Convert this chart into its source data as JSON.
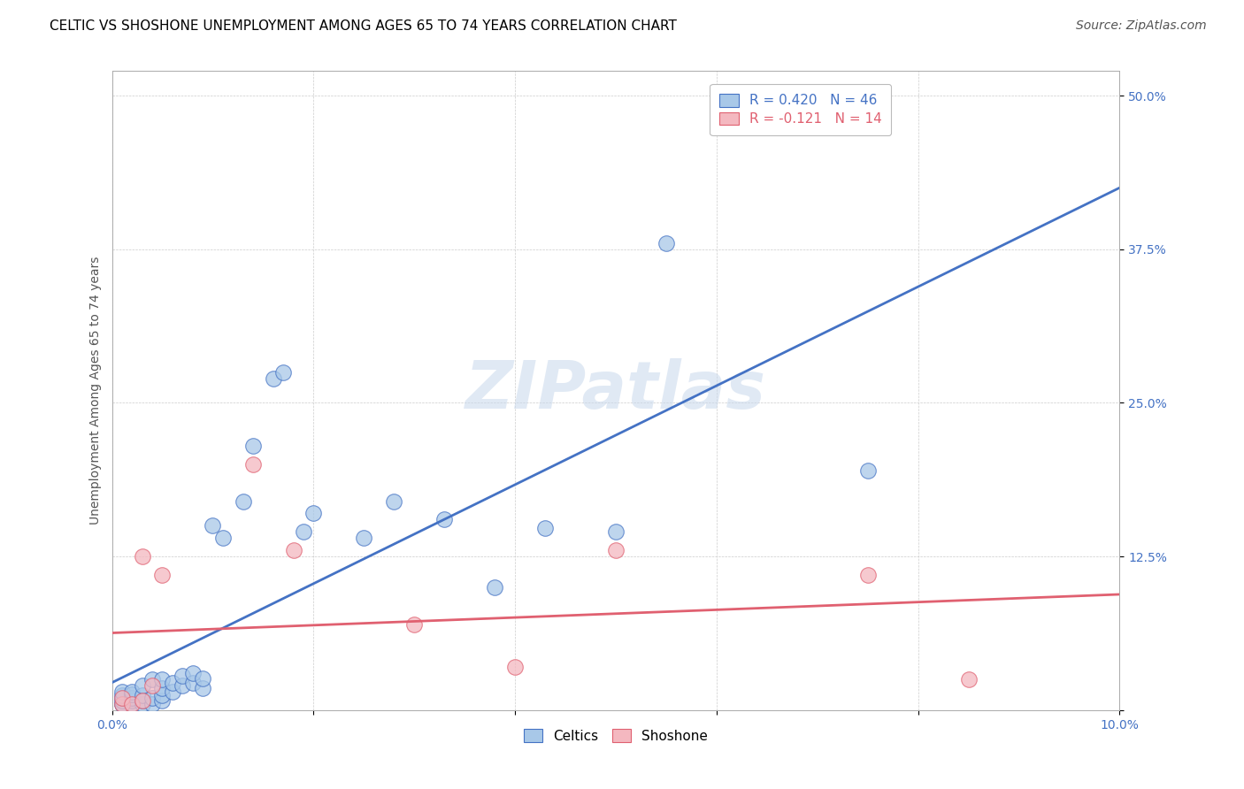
{
  "title": "CELTIC VS SHOSHONE UNEMPLOYMENT AMONG AGES 65 TO 74 YEARS CORRELATION CHART",
  "source_text": "Source: ZipAtlas.com",
  "ylabel": "Unemployment Among Ages 65 to 74 years",
  "xlim": [
    0.0,
    0.1
  ],
  "ylim": [
    0.0,
    0.52
  ],
  "xticks": [
    0.0,
    0.02,
    0.04,
    0.06,
    0.08,
    0.1
  ],
  "xticklabels": [
    "0.0%",
    "",
    "",
    "",
    "",
    "10.0%"
  ],
  "yticks": [
    0.0,
    0.125,
    0.25,
    0.375,
    0.5
  ],
  "yticklabels": [
    "",
    "12.5%",
    "25.0%",
    "37.5%",
    "50.0%"
  ],
  "celtics_color": "#a8c8e8",
  "shoshone_color": "#f4b8c0",
  "celtics_line_color": "#4472c4",
  "shoshone_line_color": "#e06070",
  "watermark": "ZIPatlas",
  "celtics_x": [
    0.001,
    0.001,
    0.001,
    0.001,
    0.001,
    0.001,
    0.002,
    0.002,
    0.002,
    0.002,
    0.002,
    0.003,
    0.003,
    0.003,
    0.003,
    0.004,
    0.004,
    0.004,
    0.005,
    0.005,
    0.005,
    0.005,
    0.006,
    0.006,
    0.007,
    0.007,
    0.008,
    0.008,
    0.009,
    0.009,
    0.01,
    0.011,
    0.013,
    0.014,
    0.016,
    0.017,
    0.019,
    0.02,
    0.025,
    0.028,
    0.033,
    0.038,
    0.043,
    0.05,
    0.055,
    0.075
  ],
  "celtics_y": [
    0.005,
    0.005,
    0.008,
    0.01,
    0.012,
    0.015,
    0.005,
    0.008,
    0.01,
    0.013,
    0.015,
    0.005,
    0.008,
    0.012,
    0.02,
    0.005,
    0.01,
    0.025,
    0.008,
    0.012,
    0.018,
    0.025,
    0.015,
    0.022,
    0.02,
    0.028,
    0.022,
    0.03,
    0.018,
    0.026,
    0.15,
    0.14,
    0.17,
    0.215,
    0.27,
    0.275,
    0.145,
    0.16,
    0.14,
    0.17,
    0.155,
    0.1,
    0.148,
    0.145,
    0.38,
    0.195
  ],
  "shoshone_x": [
    0.001,
    0.001,
    0.002,
    0.003,
    0.003,
    0.004,
    0.005,
    0.014,
    0.018,
    0.03,
    0.04,
    0.05,
    0.075,
    0.085
  ],
  "shoshone_y": [
    0.005,
    0.01,
    0.005,
    0.008,
    0.125,
    0.02,
    0.11,
    0.2,
    0.13,
    0.07,
    0.035,
    0.13,
    0.11,
    0.025
  ],
  "title_fontsize": 11,
  "axis_label_fontsize": 10,
  "tick_fontsize": 10,
  "legend_fontsize": 11,
  "source_fontsize": 10
}
